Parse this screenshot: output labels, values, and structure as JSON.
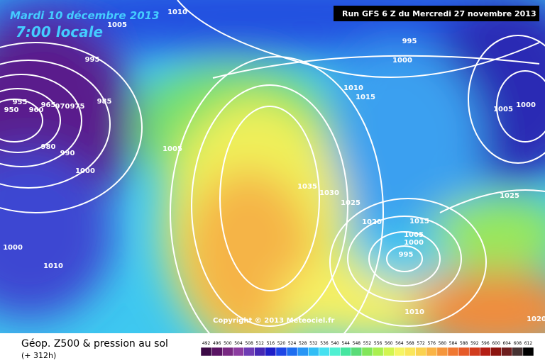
{
  "header": {
    "date": "Mardi 10 décembre 2013",
    "time": "7:00 locale",
    "run": "Run GFS 6 Z du Mercredi 27 novembre 2013"
  },
  "copyright": "Copyright © 2013 Meteociel.fr",
  "footer": {
    "title": "Géop. Z500 & pression au sol",
    "lead": "(+ 312h)"
  },
  "isobar_labels": [
    "1010",
    "1005",
    "995",
    "985",
    "975",
    "970",
    "965",
    "960",
    "955",
    "950",
    "980",
    "990",
    "1000",
    "1005",
    "1000",
    "1010",
    "1010",
    "1015",
    "995",
    "1000",
    "1005",
    "1000",
    "1035",
    "1030",
    "1025",
    "1020",
    "1015",
    "1005",
    "1000",
    "995",
    "1010",
    "1025",
    "1020"
  ],
  "legend": {
    "values": [
      492,
      496,
      500,
      504,
      508,
      512,
      516,
      520,
      524,
      528,
      532,
      536,
      540,
      544,
      548,
      552,
      556,
      560,
      564,
      568,
      572,
      576,
      580,
      584,
      588,
      592,
      596,
      600,
      604,
      608,
      612
    ],
    "colors": [
      "#3c0a46",
      "#5a1464",
      "#782882",
      "#8c3ca0",
      "#6e3cb4",
      "#4628b4",
      "#1e1ec8",
      "#1e46e6",
      "#1e6ef0",
      "#2896f5",
      "#32bef5",
      "#46e1f0",
      "#50f0d2",
      "#46e6a0",
      "#5adc78",
      "#82e65a",
      "#aaf050",
      "#d2f550",
      "#f5f564",
      "#fae65a",
      "#fad250",
      "#fab446",
      "#f5963c",
      "#f07832",
      "#e65a28",
      "#d23c1e",
      "#b41e14",
      "#8c140f",
      "#6e1e1e",
      "#463232",
      "#000000"
    ]
  }
}
